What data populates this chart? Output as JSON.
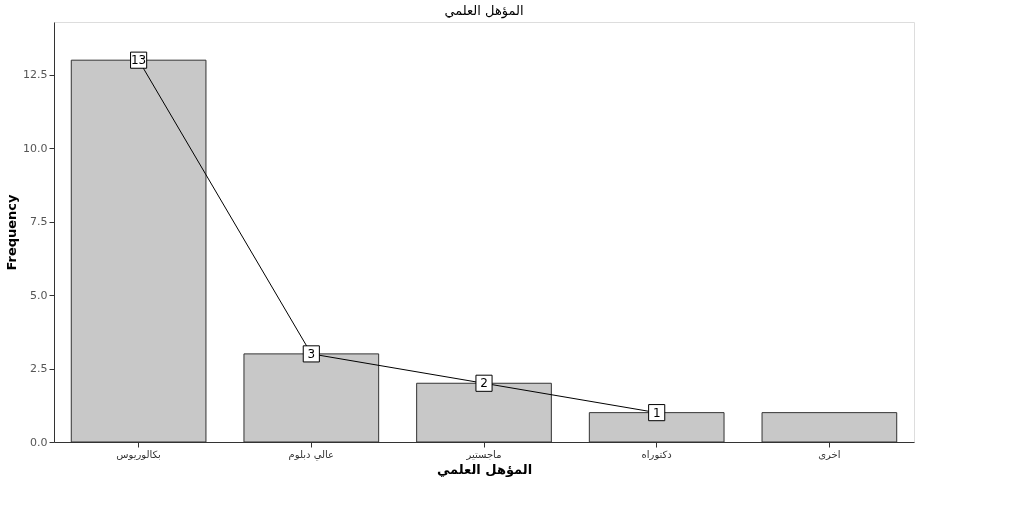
{
  "chart_data": {
    "type": "bar",
    "title": "المؤهل العلمي",
    "xlabel": "المؤهل العلمي",
    "ylabel": "Frequency",
    "categories": [
      "بكالوريوس",
      "عالي دبلوم",
      "ماجستير",
      "دكتوراه",
      "اخرى"
    ],
    "series": [
      {
        "color": "#c8c8c8",
        "values": [
          13,
          3,
          2,
          1,
          1
        ]
      },
      {
        "type": "line",
        "color": "#000000",
        "marker": "square",
        "values": [
          13,
          3,
          2,
          1,
          null
        ],
        "value_labels": [
          "13",
          "3",
          "2",
          "1",
          null
        ]
      }
    ],
    "ylim": [
      0,
      14.3
    ],
    "yticks": [
      {
        "value": 0,
        "label": "0.0"
      },
      2.5,
      {
        "value": 5,
        "label": "5.0"
      },
      7.5,
      {
        "value": 10,
        "label": "10.0"
      },
      12.5
    ],
    "grid": false,
    "line_style": "solid"
  }
}
